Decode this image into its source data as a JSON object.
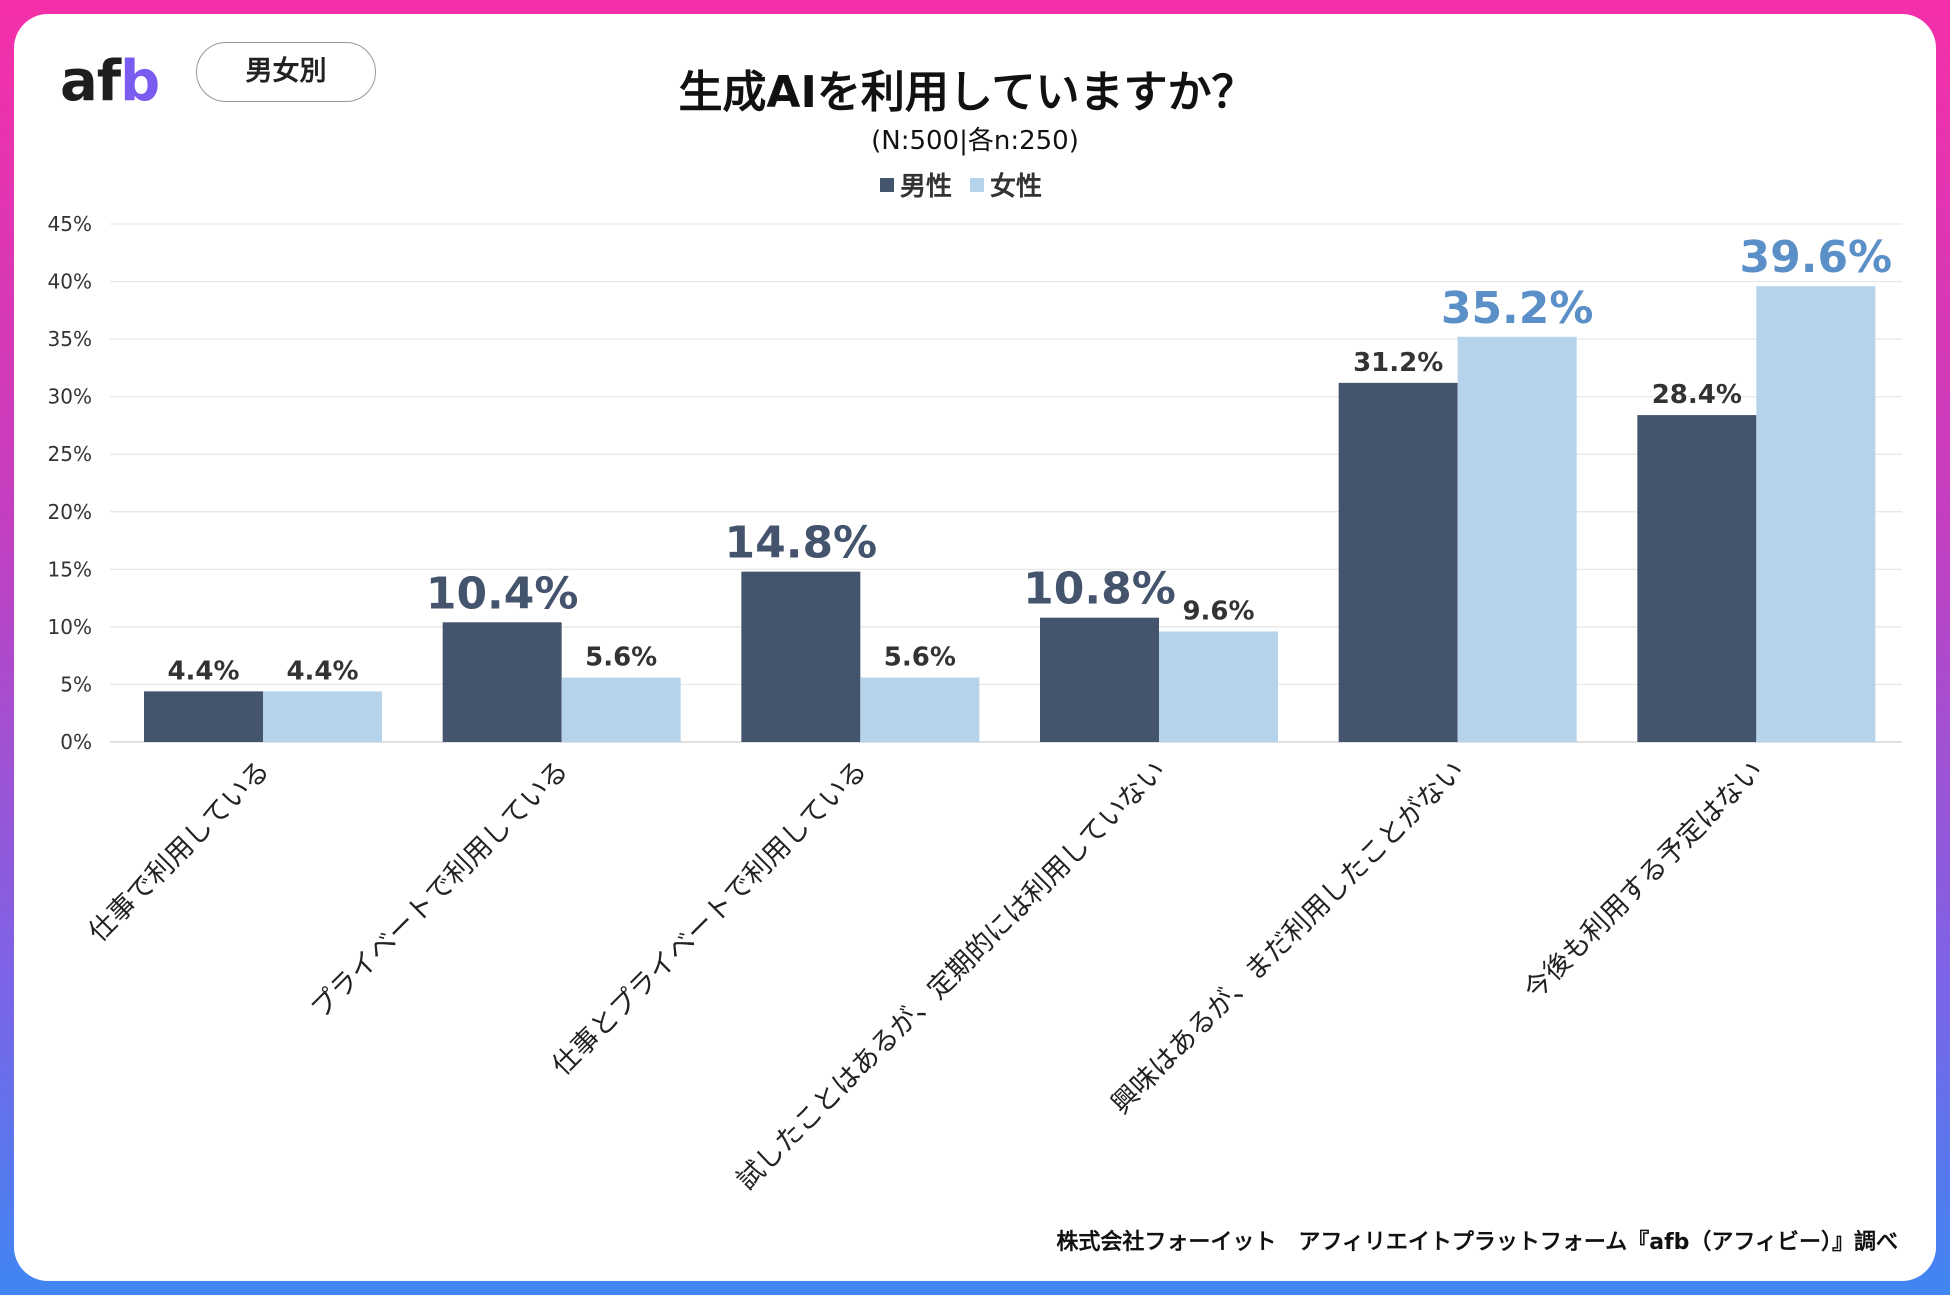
{
  "brand": {
    "logo_part1": "af",
    "logo_part2": "b",
    "tag": "男女別"
  },
  "header": {
    "title": "生成AIを利用していますか？",
    "subtitle": "(N:500|各n:250)"
  },
  "colors": {
    "male": "#45546d",
    "female": "#b6d3ec",
    "female_label_big": "#5b8fc7"
  },
  "chart_data": {
    "type": "bar",
    "title": "生成AIを利用していますか？",
    "subtitle": "(N:500|各n:250)",
    "categories": [
      "仕事で利用している",
      "プライベートで利用している",
      "仕事とプライベートで利用している",
      "試したことはあるが、定期的には利用していない",
      "興味はあるが、まだ利用したことがない",
      "今後も利用する予定はない"
    ],
    "series": [
      {
        "name": "男性",
        "values": [
          4.4,
          10.4,
          14.8,
          10.8,
          31.2,
          28.4
        ]
      },
      {
        "name": "女性",
        "values": [
          4.4,
          5.6,
          5.6,
          9.6,
          35.2,
          39.6
        ]
      }
    ],
    "data_labels": [
      [
        "4.4%",
        "10.4%",
        "14.8%",
        "10.8%",
        "31.2%",
        "28.4%"
      ],
      [
        "4.4%",
        "5.6%",
        "5.6%",
        "9.6%",
        "35.2%",
        "39.6%"
      ]
    ],
    "y_ticks": [
      "0%",
      "5%",
      "10%",
      "15%",
      "20%",
      "25%",
      "30%",
      "35%",
      "40%",
      "45%"
    ],
    "ylim": [
      0,
      45
    ],
    "grid": true,
    "legend_position": "top-center"
  },
  "footer": "株式会社フォーイット　アフィリエイトプラットフォーム『afb（アフィビー）』調べ"
}
